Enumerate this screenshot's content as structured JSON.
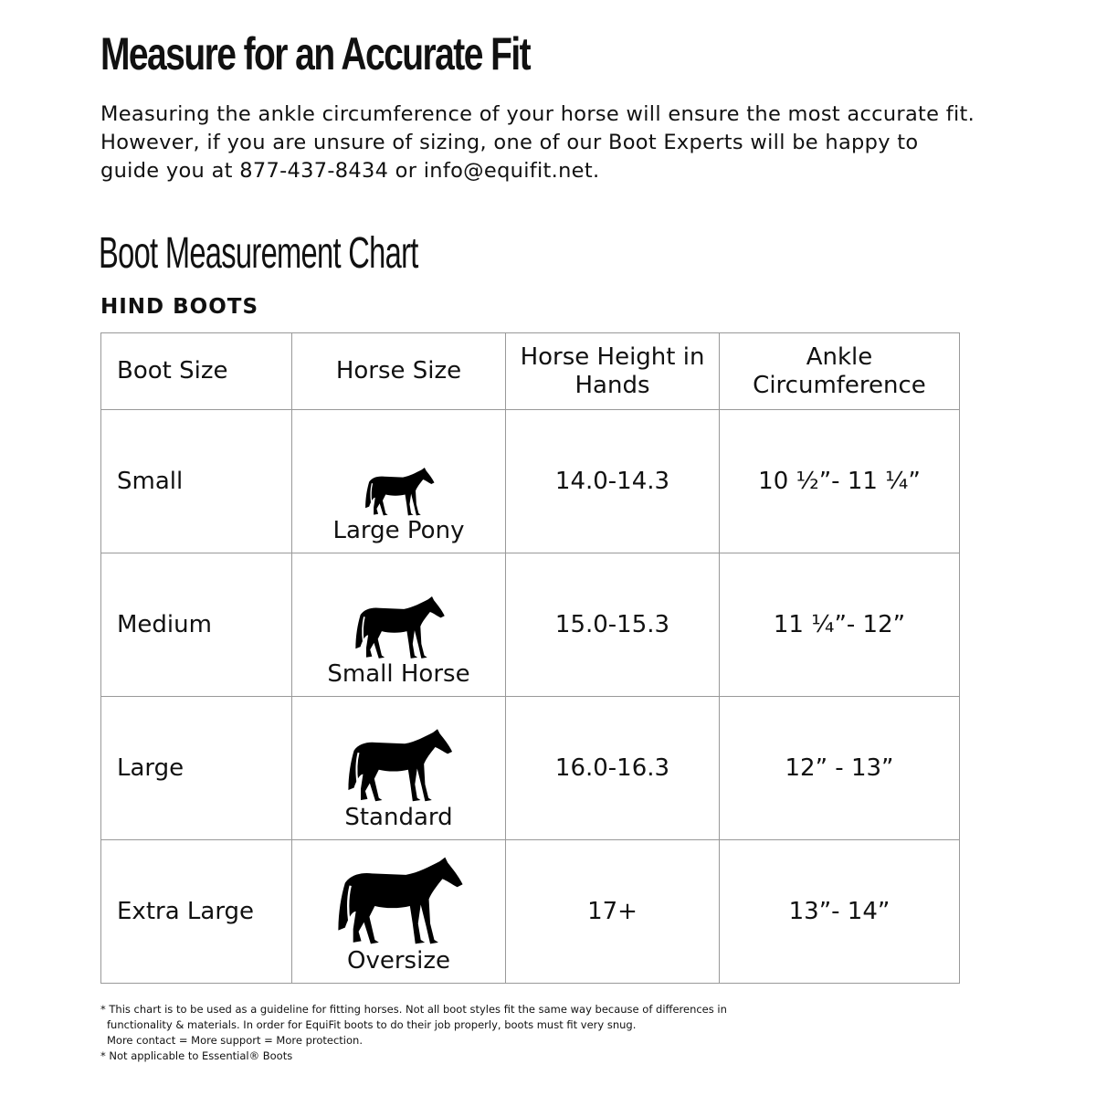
{
  "title": "Measure for an Accurate Fit",
  "intro": "Measuring the ankle circumference of your horse will ensure the most accurate fit.  However, if you are unsure of sizing, one of our Boot Experts will be happy to guide you at 877-437-8434 or info@equifit.net.",
  "subtitle": "Boot Measurement Chart",
  "section": "HIND BOOTS",
  "table": {
    "headers": [
      "Boot Size",
      "Horse Size",
      "Horse Height in Hands",
      "Ankle Circumference"
    ],
    "rows": [
      {
        "boot_size": "Small",
        "horse_size": "Large Pony",
        "icon": "horse-silhouette-icon",
        "height": "14.0-14.3",
        "ankle": "10 ½”- 11 ¼”"
      },
      {
        "boot_size": "Medium",
        "horse_size": "Small Horse",
        "icon": "horse-silhouette-icon",
        "height": "15.0-15.3",
        "ankle": "11 ¼”- 12”"
      },
      {
        "boot_size": "Large",
        "horse_size": "Standard",
        "icon": "horse-silhouette-icon",
        "height": "16.0-16.3",
        "ankle": "12” - 13”"
      },
      {
        "boot_size": "Extra Large",
        "horse_size": "Oversize",
        "icon": "horse-silhouette-icon",
        "height": "17+",
        "ankle": "13”- 14”"
      }
    ]
  },
  "notes": [
    "* This chart is to be used as a guideline for fitting horses. Not all boot styles fit the same way because of differences in",
    "functionality & materials. In order for EquiFit boots to do their job properly, boots must fit very snug.",
    "More contact = More support = More protection.",
    "* Not applicable to Essential® Boots"
  ]
}
